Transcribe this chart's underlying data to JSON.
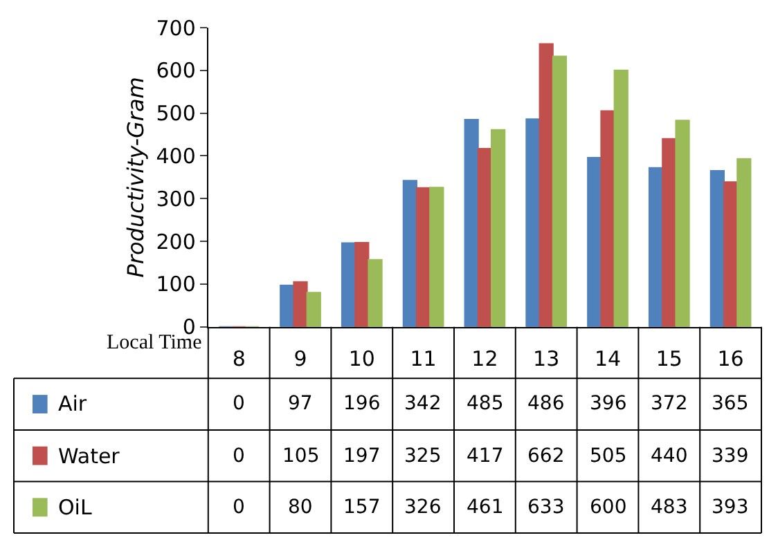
{
  "chart_data": {
    "type": "bar",
    "ylabel": "Productivity-Gram",
    "xlabel": "Local Time",
    "categories": [
      "8",
      "9",
      "10",
      "11",
      "12",
      "13",
      "14",
      "15",
      "16"
    ],
    "series": [
      {
        "name": "Air",
        "color": "#4f81bd",
        "values": [
          0,
          97,
          196,
          342,
          485,
          486,
          396,
          372,
          365
        ]
      },
      {
        "name": "Water",
        "color": "#c0504d",
        "values": [
          0,
          105,
          197,
          325,
          417,
          662,
          505,
          440,
          339
        ]
      },
      {
        "name": "OiL",
        "color": "#9bbb59",
        "values": [
          0,
          80,
          157,
          326,
          461,
          633,
          600,
          483,
          393
        ]
      }
    ],
    "ylim": [
      0,
      700
    ],
    "yticks": [
      0,
      100,
      200,
      300,
      400,
      500,
      600,
      700
    ],
    "legend": "bottom left",
    "data_labels": true
  }
}
